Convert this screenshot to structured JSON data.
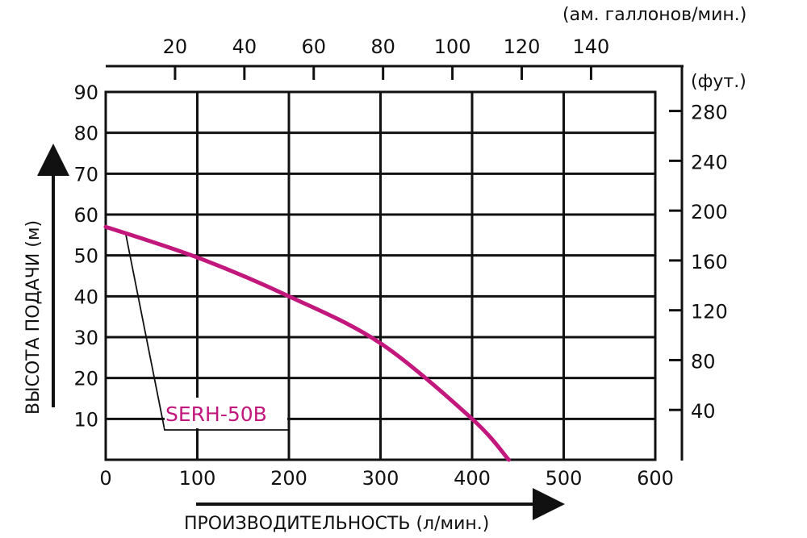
{
  "chart_data": {
    "type": "line",
    "title": "",
    "xlabel": "ПРОИЗВОДИТЕЛЬНОСТЬ (л/мин.)",
    "ylabel": "ВЫСОТА ПОДАЧИ (м)",
    "x2label": "(ам. галлонов/мин.)",
    "y2label": "(фут.)",
    "xlim": [
      0,
      600
    ],
    "ylim": [
      0,
      90
    ],
    "x_ticks": [
      0,
      100,
      200,
      300,
      400,
      500,
      600
    ],
    "y_ticks": [
      10,
      20,
      30,
      40,
      50,
      60,
      70,
      80,
      90
    ],
    "x2_ticks": [
      20,
      40,
      60,
      80,
      100,
      120,
      140
    ],
    "y2_ticks": [
      40,
      80,
      120,
      160,
      200,
      240,
      280
    ],
    "grid": true,
    "legend_position": "inline-annotation",
    "series": [
      {
        "name": "SERH-50B",
        "color": "#c2187d",
        "x": [
          0,
          100,
          200,
          300,
          400,
          440
        ],
        "y": [
          57,
          49.5,
          40,
          28.5,
          10,
          0
        ]
      }
    ]
  },
  "labels": {
    "x_axis_title": "ПРОИЗВОДИТЕЛЬНОСТЬ (л/мин.)",
    "y_axis_title": "ВЫСОТА ПОДАЧИ (м)",
    "top_axis_title": "(ам. галлонов/мин.)",
    "right_axis_title": "(фут.)",
    "series_label": "SERH-50B",
    "x_ticks": [
      "0",
      "100",
      "200",
      "300",
      "400",
      "500",
      "600"
    ],
    "y_ticks": [
      "10",
      "20",
      "30",
      "40",
      "50",
      "60",
      "70",
      "80",
      "90"
    ],
    "top_ticks": [
      "20",
      "40",
      "60",
      "80",
      "100",
      "120",
      "140"
    ],
    "right_ticks": [
      "40",
      "80",
      "120",
      "160",
      "200",
      "240",
      "280"
    ]
  },
  "colors": {
    "curve": "#c2187d",
    "grid": "#111111",
    "background": "#ffffff"
  }
}
